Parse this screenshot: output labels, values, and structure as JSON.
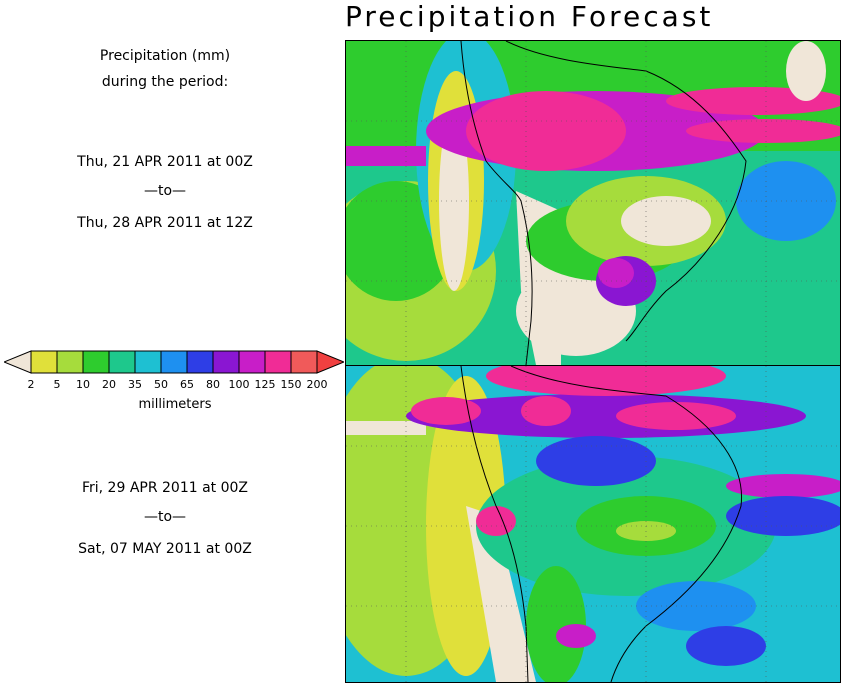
{
  "title": "Precipitation Forecast",
  "header": {
    "line1": "Precipitation (mm)",
    "line2": "during the period:"
  },
  "period1": {
    "start": "Thu, 21 APR 2011 at 00Z",
    "sep": "—to—",
    "end": "Thu, 28 APR 2011 at 12Z"
  },
  "period2": {
    "start": "Fri, 29 APR 2011 at 00Z",
    "sep": "—to—",
    "end": "Sat, 07 MAY 2011 at 00Z"
  },
  "colorbar": {
    "unit": "millimeters",
    "ticks": [
      "2",
      "5",
      "10",
      "20",
      "35",
      "50",
      "65",
      "80",
      "100",
      "125",
      "150",
      "200"
    ],
    "colors": [
      "#e0e03a",
      "#a6dc3c",
      "#2ecc2e",
      "#1ec88c",
      "#1ec0d2",
      "#1e90f0",
      "#2e3ee6",
      "#8a16d2",
      "#c81ec8",
      "#f02c96",
      "#f05a5a"
    ],
    "low_color": "#f0e6d8",
    "high_color": "#f04040"
  },
  "maps": [
    {
      "name": "forecast-map-week1"
    },
    {
      "name": "forecast-map-week2"
    }
  ]
}
